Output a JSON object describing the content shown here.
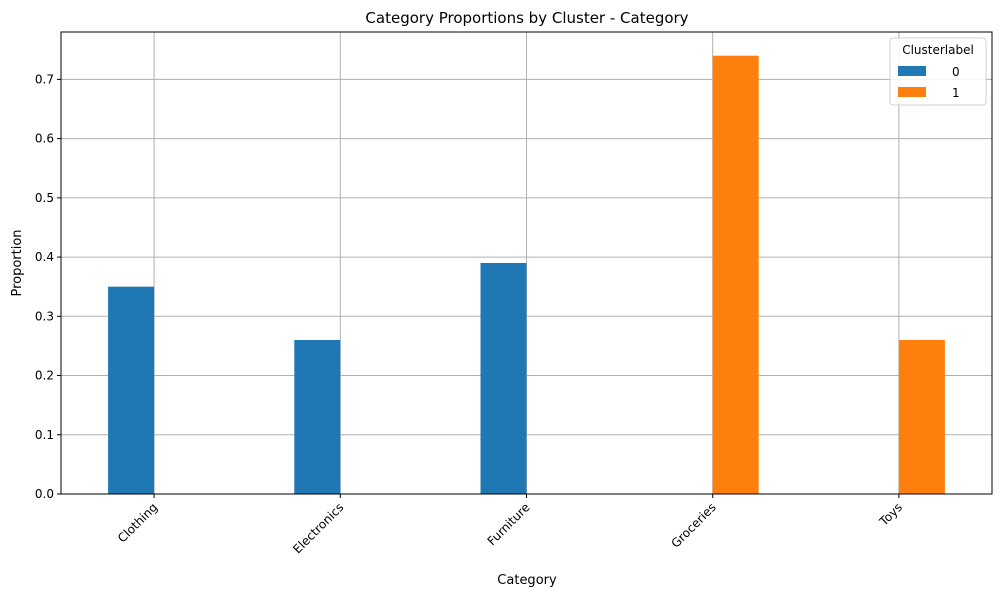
{
  "chart_data": {
    "type": "bar",
    "title": "Category Proportions by Cluster - Category",
    "xlabel": "Category",
    "ylabel": "Proportion",
    "categories": [
      "Clothing",
      "Electronics",
      "Furniture",
      "Groceries",
      "Toys"
    ],
    "series": [
      {
        "name": "0",
        "color": "#1f77b4",
        "values": [
          0.35,
          0.26,
          0.39,
          0,
          0
        ]
      },
      {
        "name": "1",
        "color": "#ff7f0e",
        "values": [
          0,
          0,
          0,
          0.74,
          0.26
        ]
      }
    ],
    "ylim": [
      0,
      0.78
    ],
    "yticks": [
      "0.0",
      "0.1",
      "0.2",
      "0.3",
      "0.4",
      "0.5",
      "0.6",
      "0.7"
    ],
    "grid": true,
    "legend": {
      "title": "Clusterlabel",
      "position": "top-right"
    }
  }
}
